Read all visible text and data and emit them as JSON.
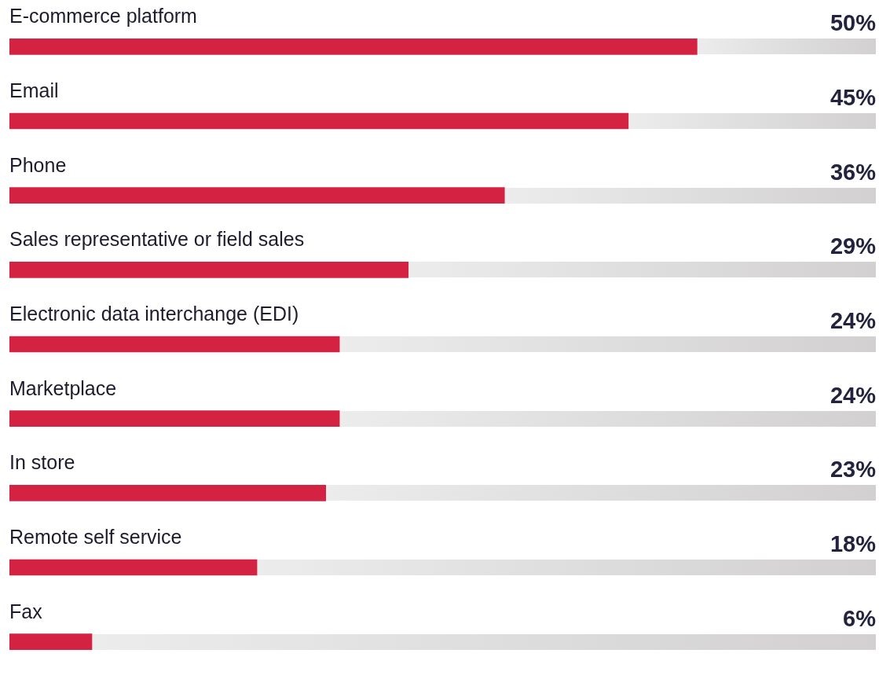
{
  "chart_data": {
    "type": "bar",
    "orientation": "horizontal",
    "categories": [
      "E-commerce platform",
      "Email",
      "Phone",
      "Sales representative or field sales",
      "Electronic data interchange (EDI)",
      "Marketplace",
      "In store",
      "Remote self service",
      "Fax"
    ],
    "values": [
      50,
      45,
      36,
      29,
      24,
      24,
      23,
      18,
      6
    ],
    "value_labels": [
      "50%",
      "45%",
      "36%",
      "29%",
      "24%",
      "24%",
      "23%",
      "18%",
      "6%"
    ],
    "color": "#d42242",
    "xlim": [
      0,
      63
    ]
  }
}
